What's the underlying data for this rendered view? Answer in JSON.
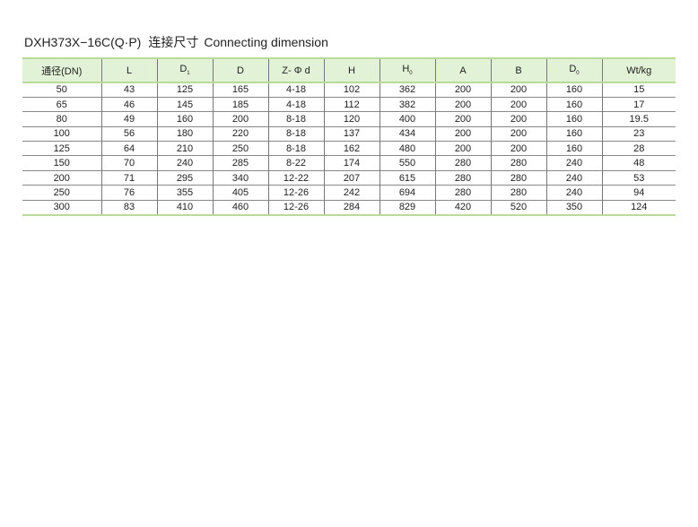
{
  "title": {
    "model": "DXH373X−16C(Q·P)",
    "cn": "连接尺寸",
    "en": "Connecting dimension"
  },
  "table": {
    "headers": [
      {
        "main": "通径(DN)",
        "sub": ""
      },
      {
        "main": "L",
        "sub": ""
      },
      {
        "main": "D",
        "sub": "1"
      },
      {
        "main": "D",
        "sub": ""
      },
      {
        "main": "Z- Φ d",
        "sub": ""
      },
      {
        "main": "H",
        "sub": ""
      },
      {
        "main": "H",
        "sub": "0"
      },
      {
        "main": "A",
        "sub": ""
      },
      {
        "main": "B",
        "sub": ""
      },
      {
        "main": "D",
        "sub": "0"
      },
      {
        "main": "Wt/kg",
        "sub": ""
      }
    ],
    "rows": [
      [
        "50",
        "43",
        "125",
        "165",
        "4-18",
        "102",
        "362",
        "200",
        "200",
        "160",
        "15"
      ],
      [
        "65",
        "46",
        "145",
        "185",
        "4-18",
        "112",
        "382",
        "200",
        "200",
        "160",
        "17"
      ],
      [
        "80",
        "49",
        "160",
        "200",
        "8-18",
        "120",
        "400",
        "200",
        "200",
        "160",
        "19.5"
      ],
      [
        "100",
        "56",
        "180",
        "220",
        "8-18",
        "137",
        "434",
        "200",
        "200",
        "160",
        "23"
      ],
      [
        "125",
        "64",
        "210",
        "250",
        "8-18",
        "162",
        "480",
        "200",
        "200",
        "160",
        "28"
      ],
      [
        "150",
        "70",
        "240",
        "285",
        "8-22",
        "174",
        "550",
        "280",
        "280",
        "240",
        "48"
      ],
      [
        "200",
        "71",
        "295",
        "340",
        "12-22",
        "207",
        "615",
        "280",
        "280",
        "240",
        "53"
      ],
      [
        "250",
        "76",
        "355",
        "405",
        "12-26",
        "242",
        "694",
        "280",
        "280",
        "240",
        "94"
      ],
      [
        "300",
        "83",
        "410",
        "460",
        "12-26",
        "284",
        "829",
        "420",
        "520",
        "350",
        "124"
      ]
    ]
  }
}
